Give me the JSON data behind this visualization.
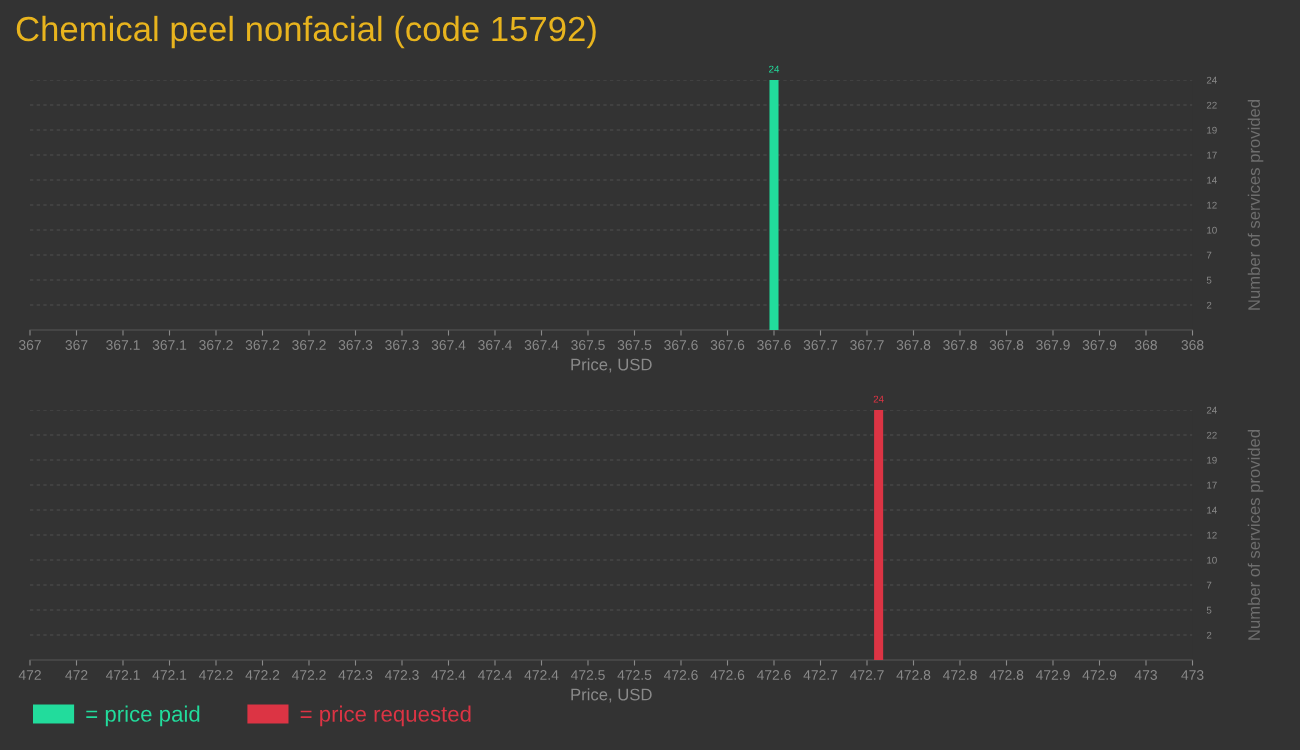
{
  "chart_data": [
    {
      "type": "bar",
      "title": "Chemical peel nonfacial (code 15792)",
      "xlabel": "Price, USD",
      "ylabel": "Number of services provided",
      "x": [
        367.64
      ],
      "series": [
        {
          "name": "= price paid",
          "color": "#22dc9c",
          "values": [
            24
          ]
        }
      ],
      "xlim": [
        367,
        368
      ],
      "xticks": [
        367,
        {
          "value": 367.04,
          "label": "367"
        },
        {
          "value": 367.08,
          "label": "367.1"
        },
        {
          "value": 367.12,
          "label": "367.1"
        },
        {
          "value": 367.16,
          "label": "367.2"
        },
        367.2,
        {
          "value": 367.24,
          "label": "367.2"
        },
        {
          "value": 367.28,
          "label": "367.3"
        },
        {
          "value": 367.32,
          "label": "367.3"
        },
        {
          "value": 367.36,
          "label": "367.4"
        },
        367.4,
        {
          "value": 367.44,
          "label": "367.4"
        },
        {
          "value": 367.48,
          "label": "367.5"
        },
        {
          "value": 367.52,
          "label": "367.5"
        },
        {
          "value": 367.56,
          "label": "367.6"
        },
        367.6,
        {
          "value": 367.64,
          "label": "367.6"
        },
        {
          "value": 367.68,
          "label": "367.7"
        },
        {
          "value": 367.72,
          "label": "367.7"
        },
        {
          "value": 367.76,
          "label": "367.8"
        },
        367.8,
        {
          "value": 367.84,
          "label": "367.8"
        },
        {
          "value": 367.88,
          "label": "367.9"
        },
        {
          "value": 367.92,
          "label": "367.9"
        },
        {
          "value": 367.96,
          "label": "368"
        },
        368
      ],
      "ylim": [
        0,
        24
      ],
      "yticks": [
        {
          "value": 2.4,
          "label": "2"
        },
        {
          "value": 4.8,
          "label": "5"
        },
        {
          "value": 7.2,
          "label": "7"
        },
        {
          "value": 9.6,
          "label": "10"
        },
        12,
        {
          "value": 14.4,
          "label": "14"
        },
        {
          "value": 16.8,
          "label": "17"
        },
        {
          "value": 19.2,
          "label": "19"
        },
        {
          "value": 21.6,
          "label": "22"
        },
        24
      ],
      "grid": "y",
      "legend": "bottom left",
      "data_labels": true
    },
    {
      "type": "bar",
      "xlabel": "Price, USD",
      "ylabel": "Number of services provided",
      "x": [
        472.73
      ],
      "series": [
        {
          "name": "= price requested",
          "color": "#dc3444",
          "values": [
            24
          ]
        }
      ],
      "xlim": [
        472,
        473
      ],
      "xticks": [
        472,
        {
          "value": 472.04,
          "label": "472"
        },
        {
          "value": 472.08,
          "label": "472.1"
        },
        {
          "value": 472.12,
          "label": "472.1"
        },
        {
          "value": 472.16,
          "label": "472.2"
        },
        472.2,
        {
          "value": 472.24,
          "label": "472.2"
        },
        {
          "value": 472.28,
          "label": "472.3"
        },
        {
          "value": 472.32,
          "label": "472.3"
        },
        {
          "value": 472.36,
          "label": "472.4"
        },
        472.4,
        {
          "value": 472.44,
          "label": "472.4"
        },
        {
          "value": 472.48,
          "label": "472.5"
        },
        {
          "value": 472.52,
          "label": "472.5"
        },
        {
          "value": 472.56,
          "label": "472.6"
        },
        472.6,
        {
          "value": 472.64,
          "label": "472.6"
        },
        {
          "value": 472.68,
          "label": "472.7"
        },
        {
          "value": 472.72,
          "label": "472.7"
        },
        {
          "value": 472.76,
          "label": "472.8"
        },
        472.8,
        {
          "value": 472.84,
          "label": "472.8"
        },
        {
          "value": 472.88,
          "label": "472.9"
        },
        {
          "value": 472.92,
          "label": "472.9"
        },
        {
          "value": 472.96,
          "label": "473"
        },
        473
      ],
      "ylim": [
        0,
        24
      ],
      "yticks": [
        {
          "value": 2.4,
          "label": "2"
        },
        {
          "value": 4.8,
          "label": "5"
        },
        {
          "value": 7.2,
          "label": "7"
        },
        {
          "value": 9.6,
          "label": "10"
        },
        12,
        {
          "value": 14.4,
          "label": "14"
        },
        {
          "value": 16.8,
          "label": "17"
        },
        {
          "value": 19.2,
          "label": "19"
        },
        {
          "value": 21.6,
          "label": "22"
        },
        24
      ],
      "grid": "y",
      "legend": "bottom left",
      "data_labels": true
    }
  ]
}
